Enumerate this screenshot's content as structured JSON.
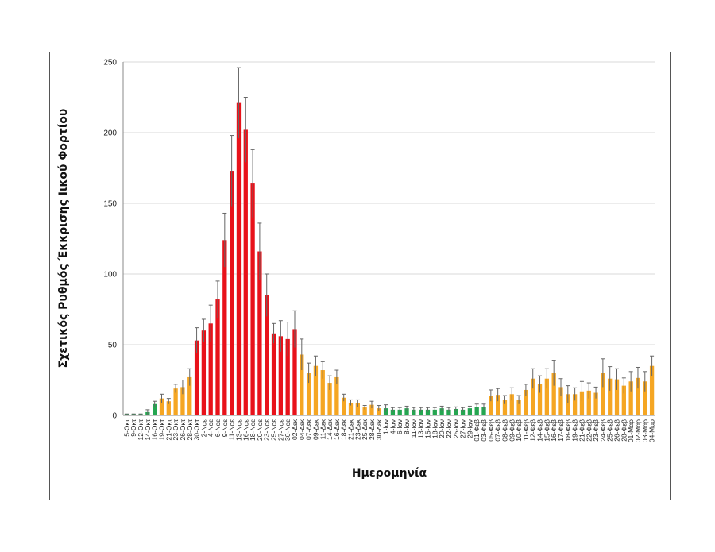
{
  "chart_data": {
    "type": "bar",
    "title": "",
    "xlabel": "Ημερομηνία",
    "ylabel": "Σχετικός Ρυθμός Έκκρισης Ιικού Φορτίου",
    "ylim": [
      0,
      250
    ],
    "yticks": [
      0,
      50,
      100,
      150,
      200,
      250
    ],
    "grid": true,
    "colors": {
      "red": "#e8121a",
      "orange": "#f5a623",
      "green": "#24a650",
      "error": "#666666"
    },
    "categories": [
      "5-Οκτ",
      "9-Οκτ",
      "12-Οκτ",
      "14-Οκτ",
      "16-Οκτ",
      "19-Οκτ",
      "21-Οκτ",
      "23-Οκτ",
      "26-Οκτ",
      "28-Οκτ",
      "30-Οκτ",
      "2-Νοε",
      "4-Νοε",
      "6-Νοε",
      "9-Νοε",
      "11-Νοε",
      "13-Νοε",
      "16-Νοε",
      "18-Νοε",
      "20-Νοε",
      "23-Νοε",
      "25-Νοε",
      "27-Νοε",
      "30-Νοε",
      "02-Δεκ",
      "04-Δεκ",
      "07-Δεκ",
      "09-Δεκ",
      "11-Δεκ",
      "14-Δεκ",
      "16-Δεκ",
      "18-Δεκ",
      "21-Δεκ",
      "23-Δεκ",
      "25-Δεκ",
      "28-Δεκ",
      "30-Δεκ",
      "1-Ιαν",
      "4-Ιαν",
      "6-Ιαν",
      "8-Ιαν",
      "11-Ιαν",
      "13-Ιαν",
      "15-Ιαν",
      "18-Ιαν",
      "20-Ιαν",
      "22-Ιαν",
      "25-Ιαν",
      "27-Ιαν",
      "29-Ιαν",
      "01-Φεβ",
      "03-Φεβ",
      "05-Φεβ",
      "07-Φεβ",
      "08-Φεβ",
      "09-Φεβ",
      "10-Φεβ",
      "11-Φεβ",
      "12-Φεβ",
      "14-Φεβ",
      "15-Φεβ",
      "16-Φεβ",
      "17-Φεβ",
      "18-Φεβ",
      "19-Φεβ",
      "21-Φεβ",
      "22-Φεβ",
      "23-Φεβ",
      "24-Φεβ",
      "25-Φεβ",
      "26-Φεβ",
      "28-Φεβ",
      "01-Μαρ",
      "02-Μαρ",
      "03-Μαρ",
      "04-Μαρ"
    ],
    "values": [
      1,
      1,
      1,
      2.3,
      8,
      12,
      10,
      19,
      20,
      27,
      53,
      60,
      65,
      82,
      124,
      173,
      221,
      202,
      164,
      116,
      85,
      58,
      56,
      54,
      61,
      43,
      30,
      35,
      32,
      23,
      27,
      12.5,
      9,
      8.5,
      5.6,
      7.5,
      5,
      5,
      4,
      4,
      5,
      4,
      4,
      4,
      4,
      5,
      4,
      4.5,
      4,
      5,
      6,
      6,
      14,
      14.5,
      11,
      15,
      11,
      18,
      26,
      22,
      26,
      30,
      20,
      15,
      15,
      17,
      17.5,
      16,
      30,
      26,
      25.5,
      21,
      24,
      26.5,
      24,
      35
    ],
    "error_upper": [
      1,
      1,
      1,
      4,
      10,
      15,
      12,
      22,
      25,
      33,
      62,
      68,
      78,
      95,
      143,
      198,
      246,
      225,
      188,
      136,
      100,
      65,
      67,
      66,
      74,
      54,
      37,
      42,
      38,
      28,
      32,
      15,
      11,
      11,
      7,
      10,
      7,
      7.5,
      5.5,
      5.5,
      6.5,
      5.5,
      5.5,
      5.5,
      5.5,
      6.5,
      5.5,
      6,
      5.5,
      6.5,
      8,
      8,
      18,
      19,
      14,
      19.5,
      14,
      22,
      33,
      28,
      33,
      39,
      26,
      21,
      19.5,
      24,
      23,
      20,
      40,
      34.5,
      33,
      26.5,
      31,
      34,
      31,
      42
    ],
    "bar_color": [
      "green",
      "green",
      "green",
      "green",
      "green",
      "orange",
      "orange",
      "orange",
      "orange",
      "orange",
      "red",
      "red",
      "red",
      "red",
      "red",
      "red",
      "red",
      "red",
      "red",
      "red",
      "red",
      "red",
      "red",
      "red",
      "red",
      "orange",
      "orange",
      "orange",
      "orange",
      "orange",
      "orange",
      "orange",
      "orange",
      "orange",
      "orange",
      "orange",
      "orange",
      "green",
      "green",
      "green",
      "green",
      "green",
      "green",
      "green",
      "green",
      "green",
      "green",
      "green",
      "green",
      "green",
      "green",
      "green",
      "orange",
      "orange",
      "orange",
      "orange",
      "orange",
      "orange",
      "orange",
      "orange",
      "orange",
      "orange",
      "orange",
      "orange",
      "orange",
      "orange",
      "orange",
      "orange",
      "orange",
      "orange",
      "orange",
      "orange",
      "orange",
      "orange",
      "orange",
      "orange"
    ]
  }
}
